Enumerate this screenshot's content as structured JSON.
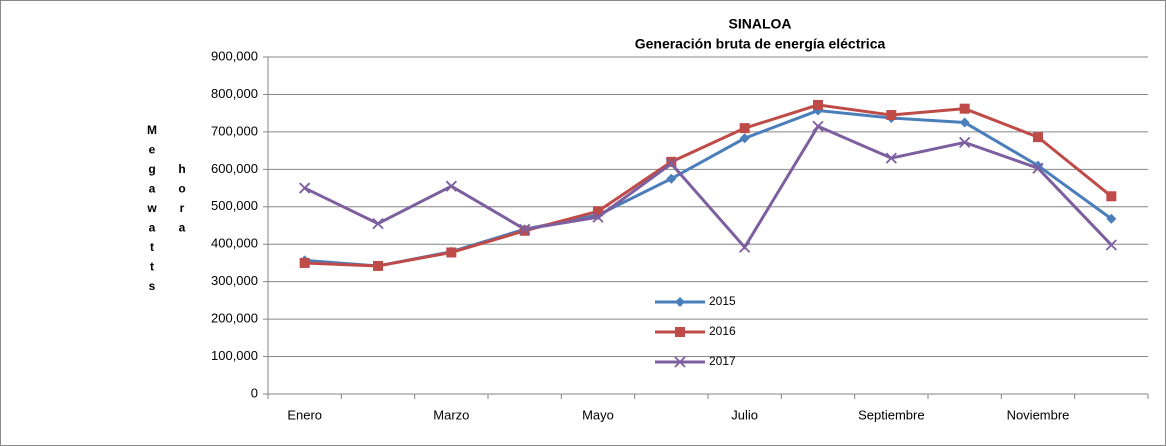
{
  "chart_data": {
    "type": "line",
    "title": "SINALOA",
    "subtitle": "Generación bruta de energía eléctrica",
    "ylabel": "Megawatts hora",
    "categories": [
      "Enero",
      null,
      "Marzo",
      null,
      "Mayo",
      null,
      "Julio",
      null,
      "Septiembre",
      null,
      "Noviembre",
      null
    ],
    "series": [
      {
        "name": "2015",
        "color": "#4a7ebb",
        "marker": "diamond",
        "values": [
          357000,
          342000,
          380000,
          440000,
          478000,
          575000,
          683000,
          757000,
          737000,
          725000,
          610000,
          468000
        ]
      },
      {
        "name": "2016",
        "color": "#be4b48",
        "marker": "square",
        "values": [
          350000,
          342000,
          378000,
          436000,
          488000,
          620000,
          710000,
          772000,
          745000,
          762000,
          686000,
          528000
        ]
      },
      {
        "name": "2017",
        "color": "#7d5fa0",
        "marker": "x",
        "values": [
          550000,
          455000,
          555000,
          440000,
          472000,
          615000,
          392000,
          715000,
          630000,
          672000,
          603000,
          398000
        ]
      }
    ],
    "ylim": [
      0,
      900000
    ],
    "yticks": [
      0,
      {
        "value": 100000,
        "label": "100,000"
      },
      {
        "value": 200000,
        "label": "200,000"
      },
      {
        "value": 300000,
        "label": "300,000"
      },
      {
        "value": 400000,
        "label": "400,000"
      },
      {
        "value": 500000,
        "label": "500,000"
      },
      {
        "value": 600000,
        "label": "600,000"
      },
      {
        "value": 700000,
        "label": "700,000"
      },
      {
        "value": 800000,
        "label": "800,000"
      },
      {
        "value": 900000,
        "label": "900,000"
      }
    ],
    "grid": true
  }
}
